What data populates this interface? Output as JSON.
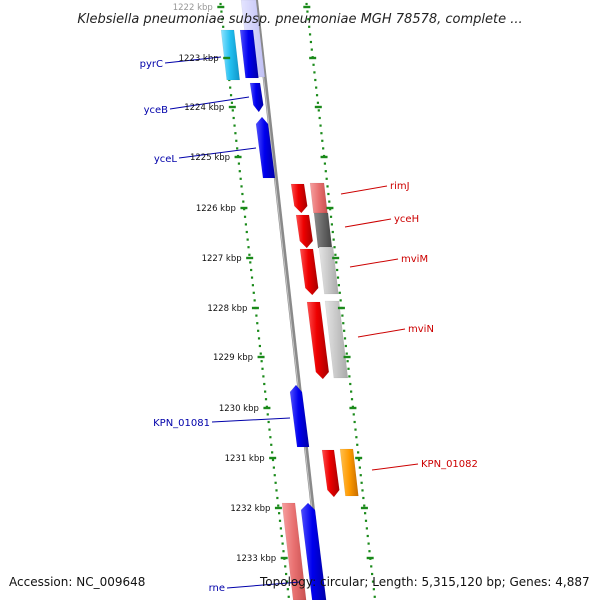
{
  "title": "Klebsiella pneumoniae subsp. pneumoniae MGH 78578, complete ...",
  "footer": {
    "accession": "Accession: NC_009648",
    "topology": "Topology: circular; Length: 5,315,120 bp; Genes: 4,887"
  },
  "colors": {
    "forward_strand": "#0000ee",
    "reverse_strand": "#ee0000",
    "tick_dots": "#1a8a1a",
    "backbone": "#8a8a8a",
    "label_line_forward": "#0000aa",
    "label_line_reverse": "#cc0000"
  },
  "ticks": [
    {
      "label": "1222 kbp"
    },
    {
      "label": "1223 kbp"
    },
    {
      "label": "1224 kbp"
    },
    {
      "label": "1225 kbp"
    },
    {
      "label": "1226 kbp"
    },
    {
      "label": "1227 kbp"
    },
    {
      "label": "1228 kbp"
    },
    {
      "label": "1229 kbp"
    },
    {
      "label": "1230 kbp"
    },
    {
      "label": "1231 kbp"
    },
    {
      "label": "1232 kbp"
    },
    {
      "label": "1233 kbp"
    }
  ],
  "genes": [
    {
      "name": "pyrC",
      "strand": "forward"
    },
    {
      "name": "yceB",
      "strand": "forward"
    },
    {
      "name": "yceL",
      "strand": "forward"
    },
    {
      "name": "rimJ",
      "strand": "reverse"
    },
    {
      "name": "yceH",
      "strand": "reverse"
    },
    {
      "name": "mviM",
      "strand": "reverse"
    },
    {
      "name": "mviN",
      "strand": "reverse"
    },
    {
      "name": "KPN_01081",
      "strand": "forward"
    },
    {
      "name": "KPN_01082",
      "strand": "reverse"
    },
    {
      "name": "rne",
      "strand": "forward"
    }
  ]
}
